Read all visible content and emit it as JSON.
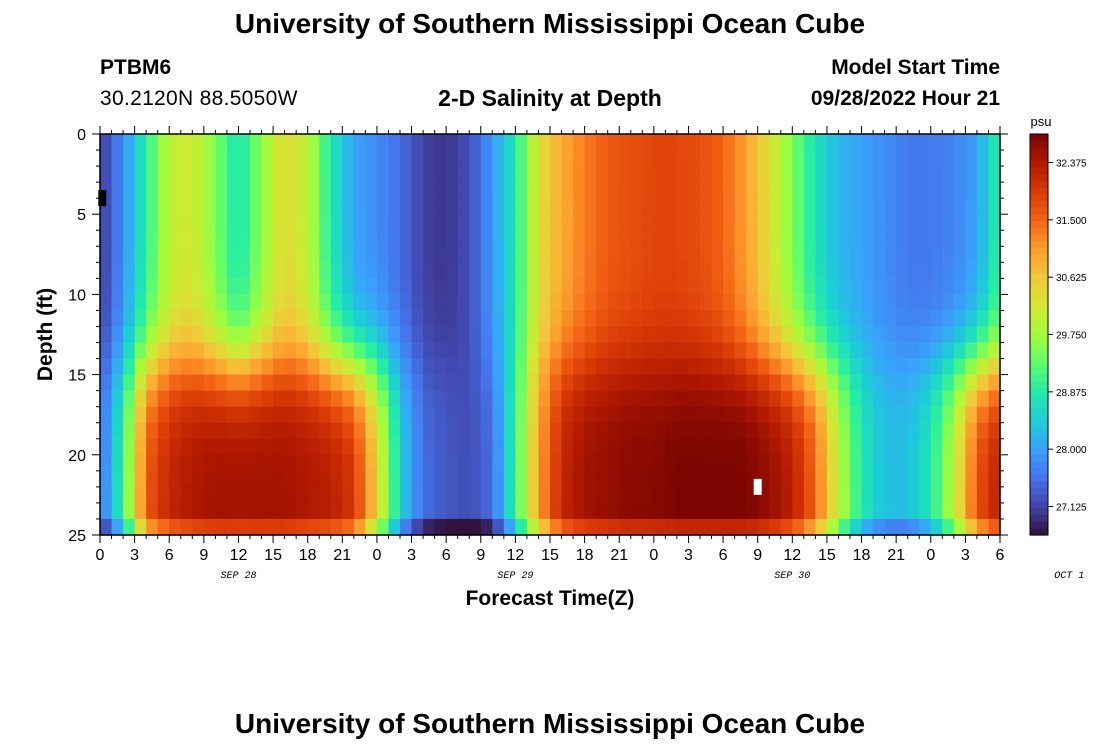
{
  "page": {
    "title": "University of Southern Mississippi Ocean Cube",
    "footer_title": "University of Southern Mississippi Ocean Cube",
    "station": "PTBM6",
    "coordinates": "30.2120N  88.5050W",
    "subtitle": "2-D Salinity at Depth",
    "model_start_label": "Model Start Time",
    "model_start_value": "09/28/2022 Hour 21"
  },
  "chart_data": {
    "type": "heatmap",
    "title": "2-D Salinity at Depth",
    "xlabel": "Forecast Time(Z)",
    "ylabel": "Depth (ft)",
    "x_ticks": [
      "0",
      "3",
      "6",
      "9",
      "12",
      "15",
      "18",
      "21",
      "0",
      "3",
      "6",
      "9",
      "12",
      "15",
      "18",
      "21",
      "0",
      "3",
      "6",
      "9",
      "12",
      "15",
      "18",
      "21",
      "0",
      "3",
      "6"
    ],
    "date_labels": [
      {
        "label": "SEP 28",
        "hour_index": 12
      },
      {
        "label": "SEP 29",
        "hour_index": 36
      },
      {
        "label": "SEP 30",
        "hour_index": 60
      },
      {
        "label": "OCT 1",
        "hour_index": 84
      }
    ],
    "x_range_hours": [
      0,
      78
    ],
    "y_ticks": [
      0,
      5,
      10,
      15,
      20,
      25
    ],
    "ylim": [
      0,
      25
    ],
    "y_inverted": true,
    "colorbar": {
      "unit": "psu",
      "min": 26.69,
      "max": 32.81,
      "tick_values": [
        "32.375",
        "31.500",
        "30.625",
        "29.750",
        "28.875",
        "28.000",
        "27.125"
      ],
      "colormap": [
        "#30123b",
        "#4145ab",
        "#4675ed",
        "#39a2fc",
        "#1bcfd4",
        "#24eca6",
        "#61fc6c",
        "#a4fc3b",
        "#d1e834",
        "#f3c63a",
        "#fe9b2d",
        "#f36315",
        "#d93806",
        "#b11901",
        "#7a0402"
      ]
    },
    "field_description": "salinity (psu) over forecast hour (x) and depth ft (y)",
    "values_by_hour": {
      "hours": [
        0,
        2,
        4,
        6,
        8,
        10,
        12,
        14,
        16,
        18,
        20,
        22,
        24,
        26,
        28,
        30,
        32,
        34,
        36,
        38,
        40,
        42,
        44,
        46,
        48,
        50,
        52,
        54,
        56,
        58,
        60,
        62,
        64,
        66,
        68,
        70,
        72,
        74,
        76,
        78
      ],
      "surface_psu": [
        27.0,
        27.8,
        28.9,
        30.0,
        30.2,
        29.5,
        28.7,
        29.6,
        30.4,
        30.0,
        28.8,
        28.0,
        27.8,
        27.5,
        27.1,
        27.0,
        27.2,
        27.9,
        28.8,
        30.3,
        30.9,
        31.3,
        31.6,
        31.7,
        31.8,
        31.8,
        31.7,
        31.5,
        31.0,
        30.3,
        29.5,
        28.7,
        28.2,
        28.0,
        27.8,
        27.6,
        27.6,
        27.7,
        28.0,
        29.0
      ],
      "bottom_psu": [
        27.5,
        29.0,
        31.6,
        32.2,
        32.4,
        32.5,
        32.5,
        32.5,
        32.5,
        32.4,
        32.3,
        32.0,
        30.5,
        28.5,
        27.5,
        27.3,
        27.2,
        27.5,
        29.0,
        31.0,
        32.2,
        32.5,
        32.6,
        32.7,
        32.7,
        32.8,
        32.8,
        32.8,
        32.8,
        32.6,
        32.3,
        31.5,
        30.0,
        28.8,
        28.3,
        28.3,
        28.8,
        30.0,
        31.7,
        32.3
      ]
    }
  },
  "annotations": [
    {
      "type": "white-marker",
      "hour": 57,
      "depth_ft": 22
    },
    {
      "type": "black-marker",
      "hour": 0.2,
      "depth_ft": 4
    }
  ]
}
